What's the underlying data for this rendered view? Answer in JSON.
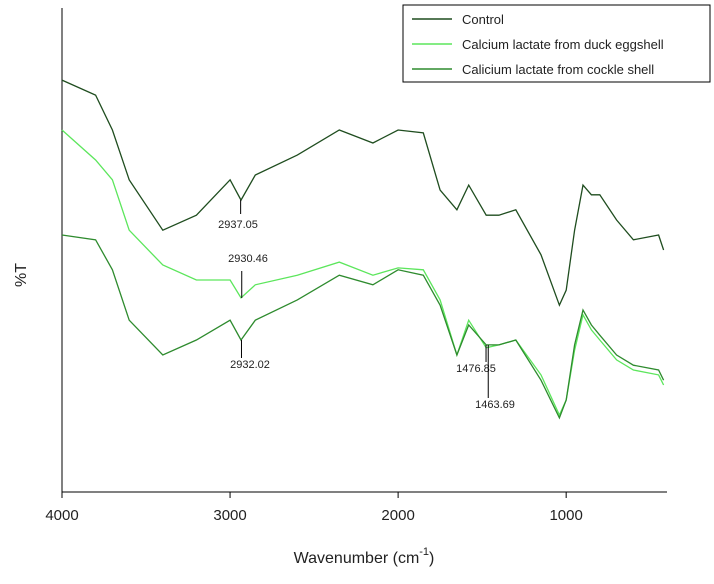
{
  "chart_data": {
    "type": "line",
    "y_label": "%T",
    "x_label": [
      "Wavenumber (cm",
      "-1",
      ")"
    ],
    "x": [
      4000,
      3800,
      3700,
      3600,
      3400,
      3200,
      3000,
      2935,
      2850,
      2600,
      2350,
      2150,
      2000,
      1850,
      1750,
      1650,
      1580,
      1476,
      1400,
      1300,
      1150,
      1040,
      1000,
      950,
      900,
      850,
      800,
      700,
      600,
      450,
      420
    ],
    "series": [
      {
        "name": "Control",
        "color": "#1f4d1f",
        "values": [
          85.1,
          82.0,
          74.8,
          64.5,
          54.1,
          57.2,
          64.5,
          60.3,
          65.5,
          69.6,
          74.8,
          72.1,
          74.8,
          74.2,
          62.4,
          58.3,
          63.4,
          57.2,
          57.2,
          58.3,
          49.0,
          38.6,
          41.7,
          54.1,
          63.4,
          61.4,
          61.4,
          56.2,
          52.1,
          53.1,
          50.0
        ]
      },
      {
        "name": "Calcium lactate from duck eggshell",
        "color": "#5ce65c",
        "values": [
          74.8,
          68.6,
          64.5,
          54.1,
          46.9,
          43.8,
          43.8,
          40.1,
          42.8,
          44.8,
          47.5,
          44.8,
          46.3,
          45.9,
          39.7,
          28.3,
          35.5,
          29.8,
          30.4,
          31.4,
          24.2,
          15.9,
          19.0,
          29.3,
          36.6,
          33.5,
          31.4,
          27.3,
          25.2,
          24.2,
          22.1
        ]
      },
      {
        "name": "Calicium lactate from cockle shell",
        "color": "#2e8b2e",
        "values": [
          53.1,
          52.1,
          45.9,
          35.5,
          28.3,
          31.4,
          35.5,
          31.4,
          35.5,
          39.7,
          44.8,
          42.8,
          45.9,
          44.8,
          38.6,
          28.3,
          34.5,
          30.4,
          30.4,
          31.4,
          23.1,
          15.3,
          19.0,
          30.4,
          37.6,
          34.5,
          32.4,
          28.3,
          26.2,
          25.2,
          23.1
        ]
      }
    ],
    "annotations": [
      "2937.05",
      "2930.46",
      "2932.02",
      "1476.85",
      "1463.69"
    ],
    "xlim": [
      4000,
      400
    ],
    "xticks": [
      4000,
      3000,
      2000,
      1000
    ],
    "ylim": [
      0,
      100
    ],
    "legend": "top-right"
  }
}
